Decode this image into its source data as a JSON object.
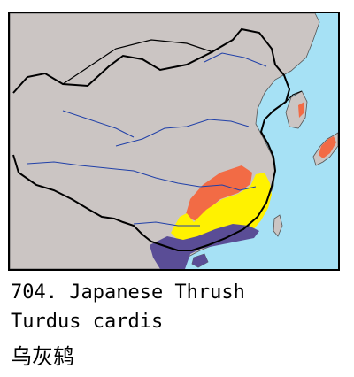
{
  "map": {
    "colors": {
      "land": "#cbc5c3",
      "sea": "#a6e1f5",
      "border": "#000000",
      "rivers": "#2040a8",
      "summer_breeding": "#f26b45",
      "resident": "#fff200",
      "winter": "#5a4d96"
    }
  },
  "caption": {
    "title": "704. Japanese Thrush",
    "latin": "Turdus cardis",
    "chinese": "乌灰鸫"
  }
}
